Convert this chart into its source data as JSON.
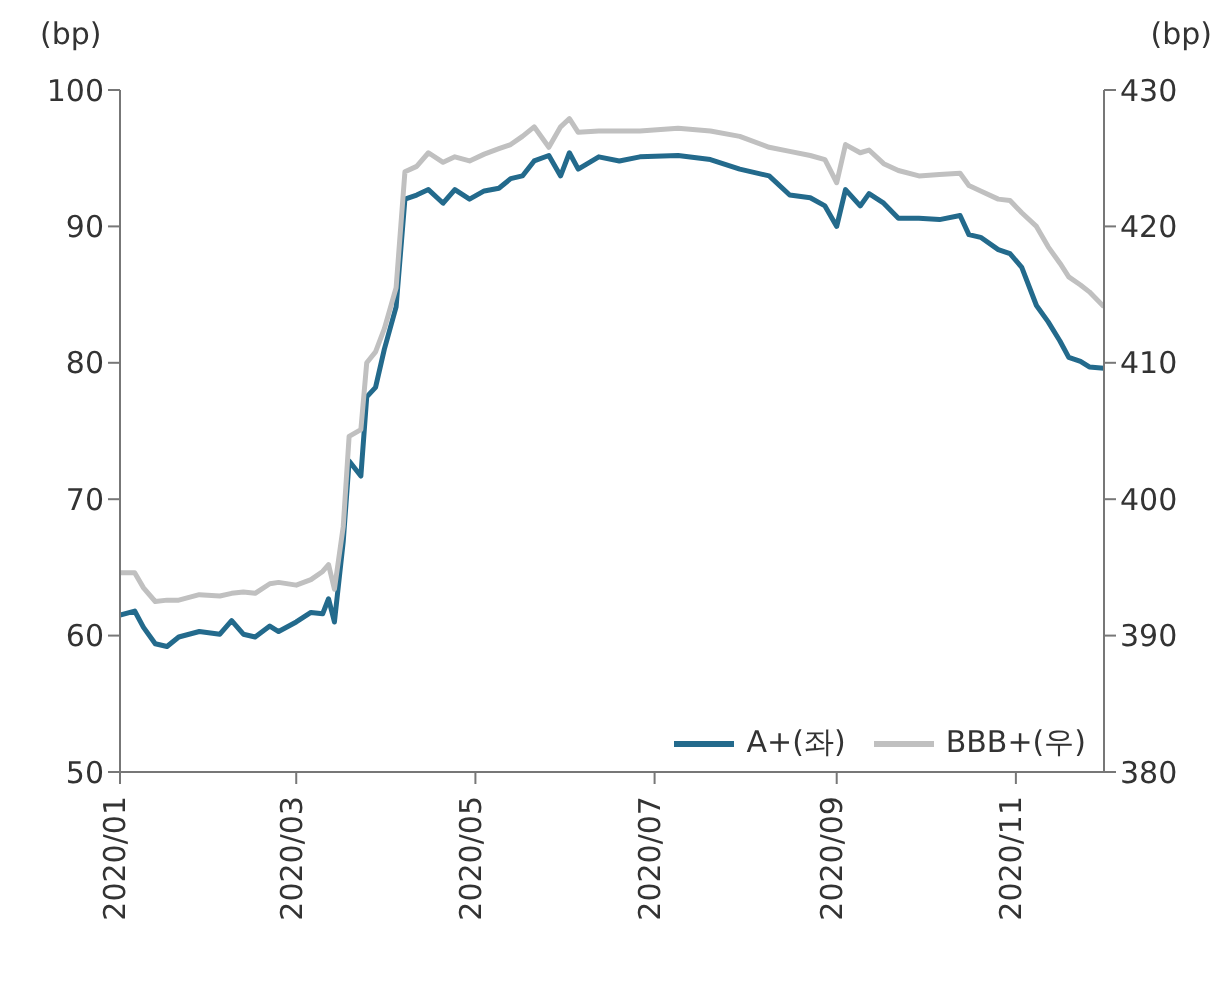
{
  "chart_data": {
    "type": "line",
    "ylabel": "(bp)",
    "y2label": "(bp)",
    "x": [
      "2020-01-01",
      "2020-01-06",
      "2020-01-09",
      "2020-01-13",
      "2020-01-17",
      "2020-01-21",
      "2020-01-28",
      "2020-02-04",
      "2020-02-08",
      "2020-02-12",
      "2020-02-16",
      "2020-02-21",
      "2020-02-24",
      "2020-03-01",
      "2020-03-06",
      "2020-03-10",
      "2020-03-12",
      "2020-03-14",
      "2020-03-17",
      "2020-03-19",
      "2020-03-23",
      "2020-03-25",
      "2020-03-28",
      "2020-03-31",
      "2020-04-04",
      "2020-04-07",
      "2020-04-11",
      "2020-04-15",
      "2020-04-20",
      "2020-04-24",
      "2020-04-29",
      "2020-05-04",
      "2020-05-09",
      "2020-05-13",
      "2020-05-17",
      "2020-05-21",
      "2020-05-26",
      "2020-05-30",
      "2020-06-02",
      "2020-06-05",
      "2020-06-12",
      "2020-06-19",
      "2020-06-26",
      "2020-07-09",
      "2020-07-20",
      "2020-07-30",
      "2020-08-09",
      "2020-08-16",
      "2020-08-23",
      "2020-08-28",
      "2020-09-01",
      "2020-09-04",
      "2020-09-09",
      "2020-09-12",
      "2020-09-17",
      "2020-09-22",
      "2020-09-29",
      "2020-10-06",
      "2020-10-13",
      "2020-10-16",
      "2020-10-20",
      "2020-10-26",
      "2020-10-30",
      "2020-11-03",
      "2020-11-08",
      "2020-11-12",
      "2020-11-16",
      "2020-11-19",
      "2020-11-23",
      "2020-11-26",
      "2020-12-01"
    ],
    "series": [
      {
        "name": "A+(좌)",
        "color": "#236a8c",
        "values": [
          61.5,
          61.8,
          60.6,
          59.4,
          59.2,
          59.9,
          60.3,
          60.1,
          61.1,
          60.1,
          59.9,
          60.7,
          60.3,
          61,
          61.7,
          61.6,
          62.7,
          61,
          66.9,
          72.8,
          71.7,
          77.5,
          78.2,
          81,
          84.1,
          92,
          92.3,
          92.7,
          91.7,
          92.7,
          92,
          92.6,
          92.8,
          93.5,
          93.7,
          94.8,
          95.2,
          93.7,
          95.4,
          94.2,
          95.1,
          94.8,
          95.1,
          95.2,
          94.9,
          94.2,
          93.7,
          92.3,
          92.1,
          91.5,
          90,
          92.7,
          91.5,
          92.4,
          91.7,
          90.6,
          90.6,
          90.5,
          90.8,
          89.4,
          89.2,
          88.3,
          88,
          87,
          84.2,
          83,
          81.6,
          80.4,
          80.1,
          79.7,
          79.6
        ]
      },
      {
        "name": "BBB+(우)",
        "color": "#c0c0c0",
        "axis": "y2",
        "values": [
          394.6,
          394.6,
          393.5,
          392.5,
          392.6,
          392.6,
          393,
          392.9,
          393.1,
          393.2,
          393.1,
          393.8,
          393.9,
          393.7,
          394.1,
          394.7,
          395.2,
          393.4,
          398,
          404.6,
          405.1,
          410,
          410.8,
          412.5,
          415.5,
          424,
          424.4,
          425.4,
          424.7,
          425.1,
          424.8,
          425.3,
          425.7,
          426,
          426.6,
          427.3,
          425.8,
          427.3,
          427.9,
          426.9,
          427,
          427,
          427,
          427.2,
          427,
          426.6,
          425.8,
          425.5,
          425.2,
          424.9,
          423.2,
          426,
          425.4,
          425.6,
          424.6,
          424.1,
          423.7,
          423.8,
          423.9,
          423,
          422.6,
          422,
          421.9,
          421,
          420,
          418.5,
          417.3,
          416.3,
          415.7,
          415.2,
          414.1
        ]
      }
    ],
    "xlim": [
      "2020-01-01",
      "2020-12-01"
    ],
    "xticks": [
      {
        "value": "2020-01",
        "label": "2020/01"
      },
      {
        "value": "2020-03",
        "label": "2020/03"
      },
      {
        "value": "2020-05",
        "label": "2020/05"
      },
      {
        "value": "2020-07",
        "label": "2020/07"
      },
      {
        "value": "2020-09",
        "label": "2020/09"
      },
      {
        "value": "2020-11",
        "label": "2020/11"
      }
    ],
    "ylim": [
      50,
      100
    ],
    "yticks": [
      50,
      60,
      70,
      80,
      90,
      100
    ],
    "y2lim": [
      380,
      430
    ],
    "y2ticks": [
      380,
      390,
      400,
      410,
      420,
      430
    ],
    "grid": false,
    "legend": "bottom right",
    "marker": "none",
    "line_style": "solid"
  }
}
